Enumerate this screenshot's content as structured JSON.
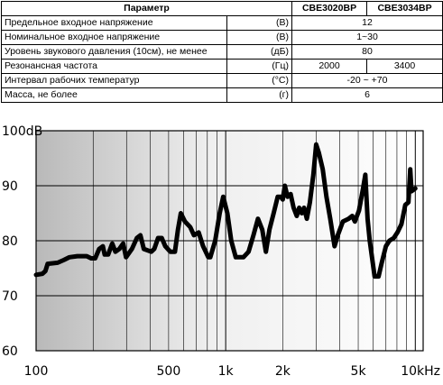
{
  "table": {
    "headers": {
      "param": "Параметр",
      "model_a": "CBE3020BP",
      "model_b": "CBE3034BP"
    },
    "rows": [
      {
        "label": "Предельное входное напряжение",
        "unit": "(В)",
        "shared": "12"
      },
      {
        "label": "Номинальное входное напряжение",
        "unit": "(В)",
        "shared": "1~30"
      },
      {
        "label": "Уровень звукового давления (10см), не менее",
        "unit": "(дБ)",
        "shared": "80"
      },
      {
        "label": "Резонансная частота",
        "unit": "(Гц)",
        "a": "2000",
        "b": "3400"
      },
      {
        "label": "Интервал рабочих температур",
        "unit": "(°С)",
        "shared": "-20 ~ +70"
      },
      {
        "label": "Масса, не более",
        "unit": "(г)",
        "shared": "6"
      }
    ]
  },
  "chart_data": {
    "type": "line",
    "x_scale": "log",
    "xlim": [
      100,
      11000
    ],
    "ylim": [
      60,
      100
    ],
    "grid": true,
    "x_ticks": [
      {
        "value": 100,
        "label": "100"
      },
      {
        "value": 500,
        "label": "500"
      },
      {
        "value": 1000,
        "label": "1k"
      },
      {
        "value": 2000,
        "label": "2k"
      },
      {
        "value": 5000,
        "label": "5k"
      },
      {
        "value": 10000,
        "label": "10kHz"
      }
    ],
    "y_ticks": [
      {
        "value": 100,
        "label": "100dB"
      },
      {
        "value": 90,
        "label": "90"
      },
      {
        "value": 80,
        "label": "80"
      },
      {
        "value": 70,
        "label": "70"
      },
      {
        "value": 60,
        "label": "60"
      }
    ],
    "series": [
      {
        "color": "#000000",
        "points": [
          [
            100,
            73.8
          ],
          [
            108,
            74
          ],
          [
            112,
            74.5
          ],
          [
            115,
            75.8
          ],
          [
            130,
            76
          ],
          [
            140,
            76.5
          ],
          [
            150,
            77
          ],
          [
            165,
            77.2
          ],
          [
            185,
            77.2
          ],
          [
            195,
            76.8
          ],
          [
            205,
            76.8
          ],
          [
            215,
            78.5
          ],
          [
            225,
            79
          ],
          [
            230,
            77.5
          ],
          [
            240,
            77.5
          ],
          [
            252,
            79.5
          ],
          [
            262,
            78
          ],
          [
            275,
            78.5
          ],
          [
            288,
            79.5
          ],
          [
            298,
            77
          ],
          [
            320,
            78.5
          ],
          [
            340,
            80.5
          ],
          [
            355,
            81
          ],
          [
            370,
            78.5
          ],
          [
            405,
            78
          ],
          [
            420,
            78.5
          ],
          [
            440,
            80.5
          ],
          [
            460,
            80.5
          ],
          [
            480,
            79
          ],
          [
            510,
            78
          ],
          [
            540,
            78
          ],
          [
            560,
            82
          ],
          [
            580,
            85
          ],
          [
            610,
            83.5
          ],
          [
            650,
            82.5
          ],
          [
            680,
            81
          ],
          [
            720,
            81.5
          ],
          [
            760,
            79
          ],
          [
            810,
            77
          ],
          [
            830,
            77
          ],
          [
            880,
            80
          ],
          [
            930,
            85
          ],
          [
            970,
            88
          ],
          [
            1020,
            85
          ],
          [
            1070,
            80
          ],
          [
            1130,
            77
          ],
          [
            1240,
            77
          ],
          [
            1320,
            78
          ],
          [
            1400,
            81
          ],
          [
            1480,
            84
          ],
          [
            1560,
            82
          ],
          [
            1630,
            78
          ],
          [
            1700,
            82
          ],
          [
            1790,
            85
          ],
          [
            1880,
            88
          ],
          [
            1950,
            88
          ],
          [
            2000,
            87.5
          ],
          [
            2050,
            90
          ],
          [
            2120,
            88
          ],
          [
            2200,
            88.5
          ],
          [
            2280,
            86
          ],
          [
            2370,
            84.5
          ],
          [
            2440,
            86
          ],
          [
            2520,
            85
          ],
          [
            2590,
            86
          ],
          [
            2680,
            84
          ],
          [
            2780,
            87
          ],
          [
            2900,
            92
          ],
          [
            3000,
            97.5
          ],
          [
            3100,
            96
          ],
          [
            3250,
            93
          ],
          [
            3400,
            88
          ],
          [
            3560,
            84
          ],
          [
            3750,
            79
          ],
          [
            3900,
            81
          ],
          [
            4150,
            83.5
          ],
          [
            4450,
            84
          ],
          [
            4650,
            84.5
          ],
          [
            4800,
            83.5
          ],
          [
            5050,
            85.5
          ],
          [
            5300,
            89.5
          ],
          [
            5450,
            92
          ],
          [
            5600,
            84
          ],
          [
            5750,
            80
          ],
          [
            6100,
            73.5
          ],
          [
            6400,
            73.5
          ],
          [
            6650,
            76
          ],
          [
            7000,
            79
          ],
          [
            7300,
            80
          ],
          [
            7700,
            80.5
          ],
          [
            8050,
            81.5
          ],
          [
            8450,
            83
          ],
          [
            8850,
            86.5
          ],
          [
            9200,
            87
          ],
          [
            9400,
            93
          ],
          [
            9550,
            89
          ],
          [
            10000,
            89.5
          ]
        ]
      }
    ]
  }
}
